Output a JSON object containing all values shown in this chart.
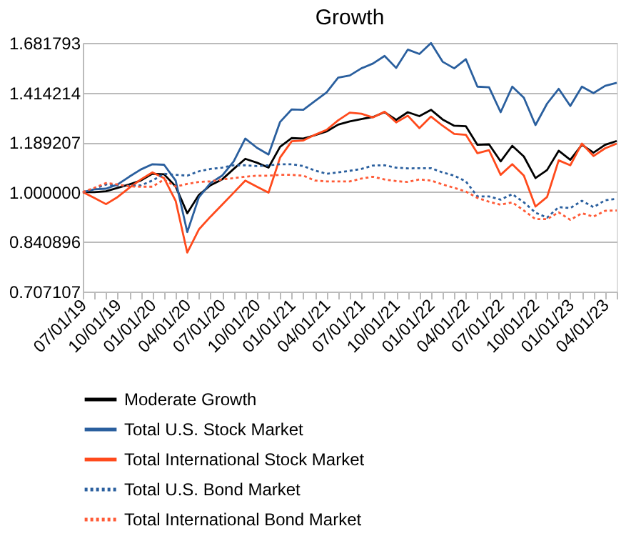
{
  "chart_data": {
    "type": "line",
    "title": "Growth",
    "categories": [
      "07/01/19",
      null,
      null,
      "10/01/19",
      null,
      null,
      "01/01/20",
      null,
      null,
      "04/01/20",
      null,
      null,
      "07/01/20",
      null,
      null,
      "10/01/20",
      null,
      null,
      "01/01/21",
      null,
      null,
      "04/01/21",
      null,
      null,
      "07/01/21",
      null,
      null,
      "10/01/21",
      null,
      null,
      "01/01/22",
      null,
      null,
      "04/01/22",
      null,
      null,
      "07/01/22",
      null,
      null,
      "10/01/22",
      null,
      null,
      "01/01/23",
      null,
      null,
      "04/01/23",
      null
    ],
    "series": [
      {
        "name": "Moderate Growth",
        "color": "#000000",
        "line_style": "solid",
        "values": [
          1.0,
          1.0,
          1.003,
          1.015,
          1.027,
          1.041,
          1.066,
          1.064,
          1.02,
          0.929,
          0.99,
          1.024,
          1.045,
          1.084,
          1.123,
          1.108,
          1.089,
          1.171,
          1.207,
          1.205,
          1.219,
          1.235,
          1.265,
          1.279,
          1.29,
          1.299,
          1.321,
          1.286,
          1.321,
          1.303,
          1.332,
          1.288,
          1.26,
          1.258,
          1.179,
          1.181,
          1.113,
          1.175,
          1.132,
          1.05,
          1.08,
          1.155,
          1.119,
          1.179,
          1.147,
          1.179,
          1.195
        ]
      },
      {
        "name": "Total U.S. Stock Market",
        "color": "#2a5f9e",
        "line_style": "solid",
        "values": [
          1.0,
          1.01,
          1.012,
          1.027,
          1.055,
          1.082,
          1.102,
          1.1,
          1.041,
          0.87,
          0.982,
          1.032,
          1.059,
          1.113,
          1.205,
          1.167,
          1.14,
          1.277,
          1.334,
          1.332,
          1.373,
          1.415,
          1.49,
          1.501,
          1.539,
          1.565,
          1.607,
          1.541,
          1.643,
          1.618,
          1.681,
          1.575,
          1.539,
          1.589,
          1.444,
          1.441,
          1.321,
          1.444,
          1.389,
          1.263,
          1.361,
          1.433,
          1.35,
          1.444,
          1.412,
          1.448,
          1.463
        ]
      },
      {
        "name": "Total International Stock Market",
        "color": "#ff4a1c",
        "line_style": "solid",
        "values": [
          1.0,
          0.98,
          0.959,
          0.983,
          1.015,
          1.045,
          1.071,
          1.05,
          0.97,
          0.81,
          0.878,
          0.918,
          0.957,
          0.998,
          1.041,
          1.019,
          0.998,
          1.128,
          1.194,
          1.197,
          1.221,
          1.242,
          1.284,
          1.319,
          1.314,
          1.297,
          1.323,
          1.275,
          1.305,
          1.25,
          1.301,
          1.26,
          1.225,
          1.221,
          1.145,
          1.157,
          1.062,
          1.102,
          1.059,
          0.951,
          0.983,
          1.117,
          1.098,
          1.184,
          1.134,
          1.165,
          1.184
        ]
      },
      {
        "name": "Total U.S. Bond Market",
        "color": "#2a5f9e",
        "line_style": "dotted",
        "values": [
          1.0,
          1.012,
          1.027,
          1.024,
          1.022,
          1.024,
          1.041,
          1.066,
          1.062,
          1.059,
          1.075,
          1.084,
          1.089,
          1.098,
          1.098,
          1.095,
          1.098,
          1.102,
          1.102,
          1.095,
          1.078,
          1.066,
          1.071,
          1.077,
          1.084,
          1.097,
          1.098,
          1.089,
          1.086,
          1.087,
          1.087,
          1.071,
          1.059,
          1.038,
          0.985,
          0.985,
          0.974,
          0.993,
          0.965,
          0.931,
          0.915,
          0.949,
          0.946,
          0.97,
          0.949,
          0.972,
          0.977
        ]
      },
      {
        "name": "Total International Bond Market",
        "color": "#ff5a36",
        "line_style": "dotted",
        "values": [
          1.0,
          1.015,
          1.032,
          1.027,
          1.02,
          1.019,
          1.019,
          1.045,
          1.019,
          1.029,
          1.036,
          1.038,
          1.045,
          1.05,
          1.055,
          1.059,
          1.059,
          1.062,
          1.062,
          1.059,
          1.041,
          1.038,
          1.038,
          1.038,
          1.048,
          1.055,
          1.045,
          1.039,
          1.036,
          1.045,
          1.041,
          1.027,
          1.015,
          1.002,
          0.98,
          0.967,
          0.957,
          0.965,
          0.938,
          0.91,
          0.91,
          0.932,
          0.908,
          0.929,
          0.918,
          0.937,
          0.938
        ]
      }
    ],
    "ylim": [
      0.707107,
      1.681793
    ],
    "yticks": [
      0.707107,
      0.840896,
      {
        "value": 1,
        "label": "1.000000"
      },
      1.189207,
      1.414214,
      1.681793
    ],
    "log": "y",
    "grid": "y",
    "legend": "bottom",
    "marker": "none"
  }
}
